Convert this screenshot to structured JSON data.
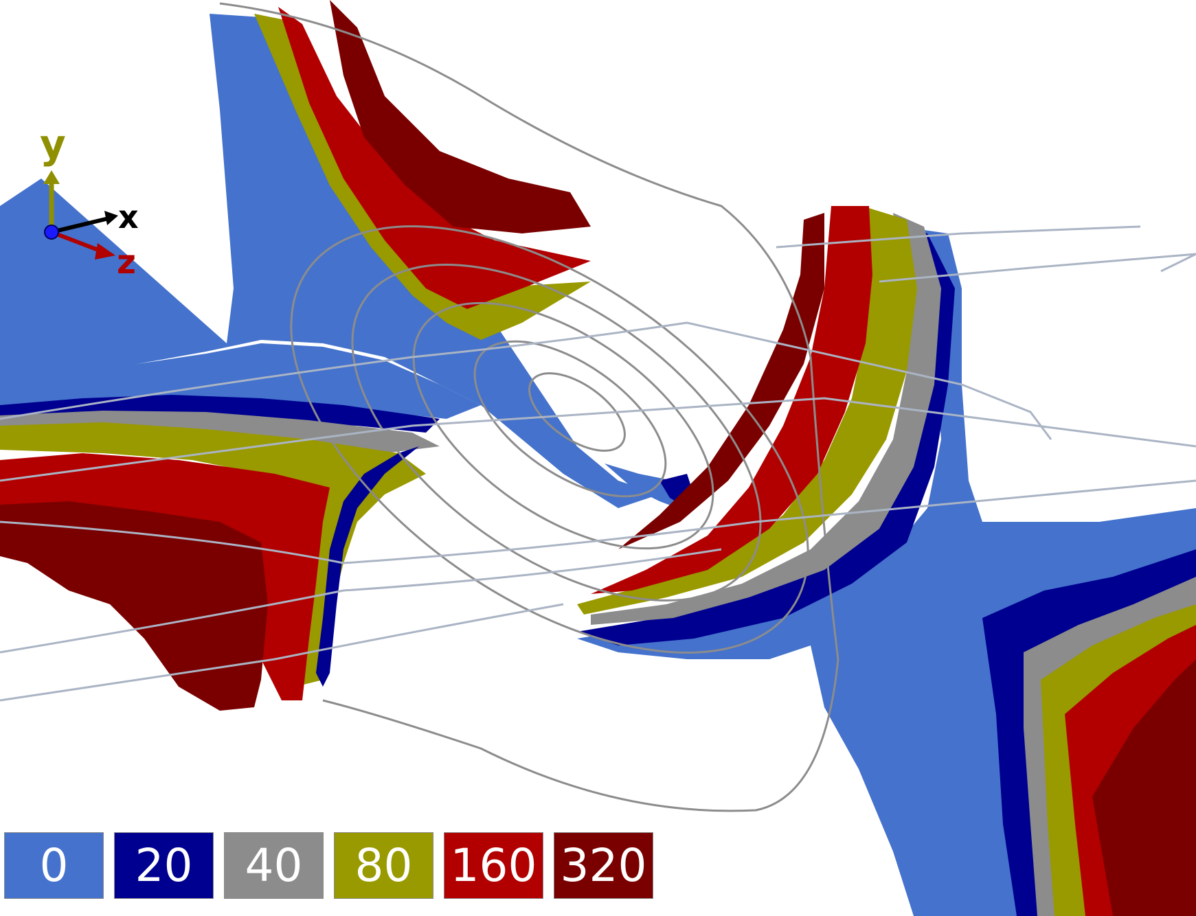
{
  "axes": {
    "y": {
      "label": "y",
      "color": "#8f8f00"
    },
    "x": {
      "label": "x",
      "color": "#000000"
    },
    "z": {
      "label": "z",
      "color": "#b00000"
    },
    "origin_color": "#1a1aff"
  },
  "legend": [
    {
      "label": "0",
      "color": "#4472cc"
    },
    {
      "label": "20",
      "color": "#000090"
    },
    {
      "label": "40",
      "color": "#8c8c8c"
    },
    {
      "label": "80",
      "color": "#999900"
    },
    {
      "label": "160",
      "color": "#b20000"
    },
    {
      "label": "320",
      "color": "#7a0000"
    }
  ],
  "streamline_colors": {
    "dark": "#8c8c8c",
    "light": "#aab4c4"
  }
}
